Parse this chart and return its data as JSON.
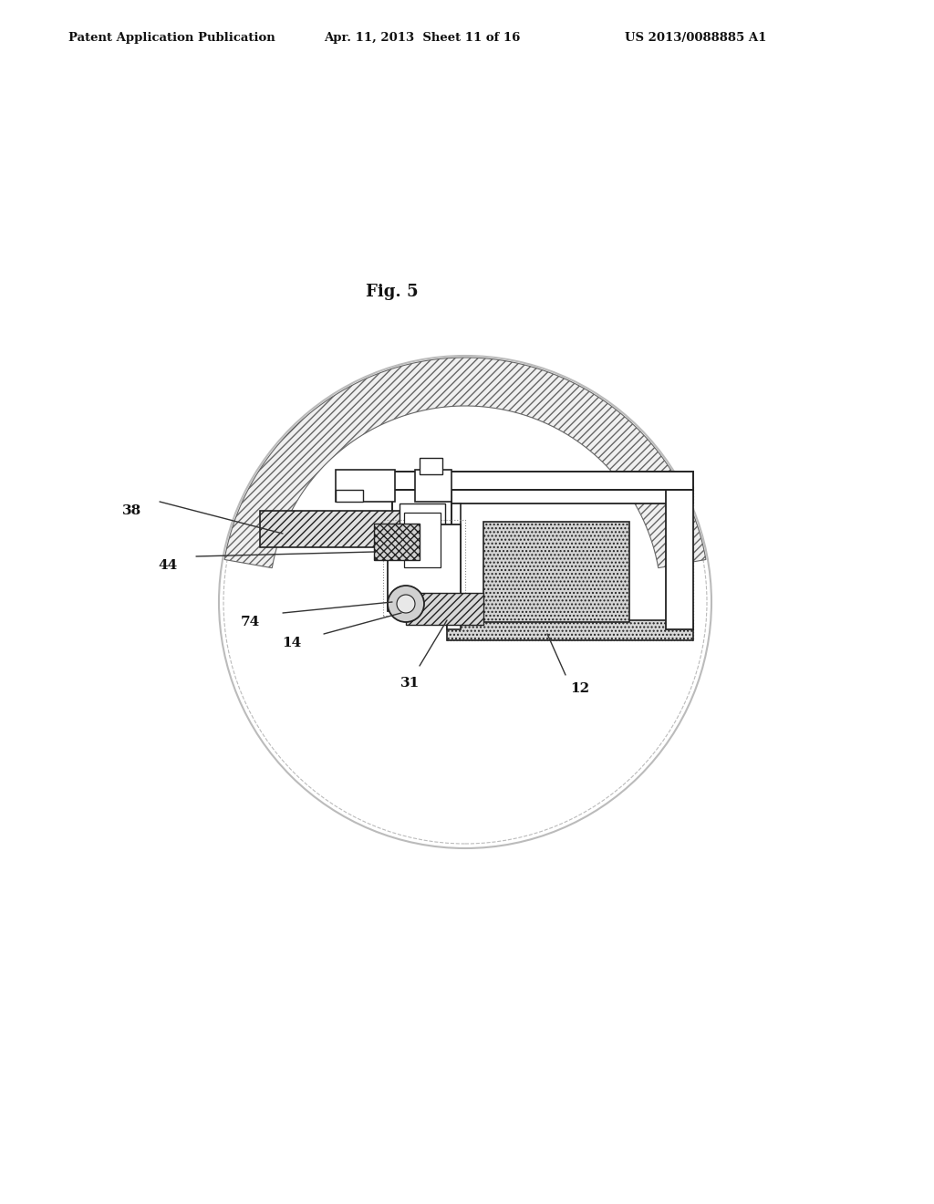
{
  "bg_color": "#ffffff",
  "header_text": "Patent Application Publication",
  "header_date": "Apr. 11, 2013  Sheet 11 of 16",
  "header_patent": "US 2013/0088885 A1",
  "fig_label": "Fig. 5",
  "labels": [
    "38",
    "44",
    "74",
    "14",
    "31",
    "12"
  ],
  "dark_line": "#222222",
  "gray_line": "#777777",
  "light_gray": "#cccccc",
  "hatch_color": "#aaaaaa"
}
